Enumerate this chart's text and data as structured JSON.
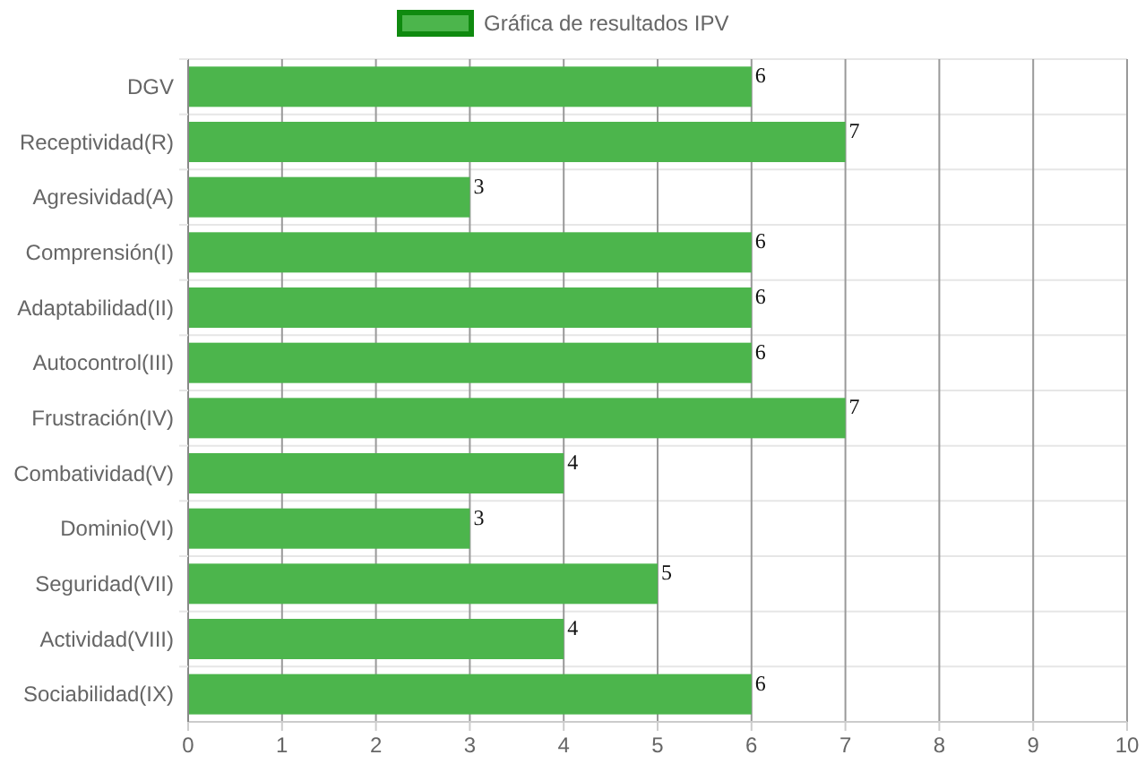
{
  "chart_data": {
    "type": "bar",
    "orientation": "horizontal",
    "categories": [
      "DGV",
      "Receptividad(R)",
      "Agresividad(A)",
      "Comprensión(I)",
      "Adaptabilidad(II)",
      "Autocontrol(III)",
      "Frustración(IV)",
      "Combatividad(V)",
      "Dominio(VI)",
      "Seguridad(VII)",
      "Actividad(VIII)",
      "Sociabilidad(IX)"
    ],
    "series": [
      {
        "name": "Gráfica de resultados IPV",
        "color": "#4cb54c",
        "values": [
          6,
          7,
          3,
          6,
          6,
          6,
          7,
          4,
          3,
          5,
          4,
          6
        ]
      }
    ],
    "xlim": [
      0,
      10
    ],
    "xticks": [
      0,
      1,
      2,
      3,
      4,
      5,
      6,
      7,
      8,
      9,
      10
    ],
    "grid": true,
    "legend": "top",
    "data_labels": true
  }
}
